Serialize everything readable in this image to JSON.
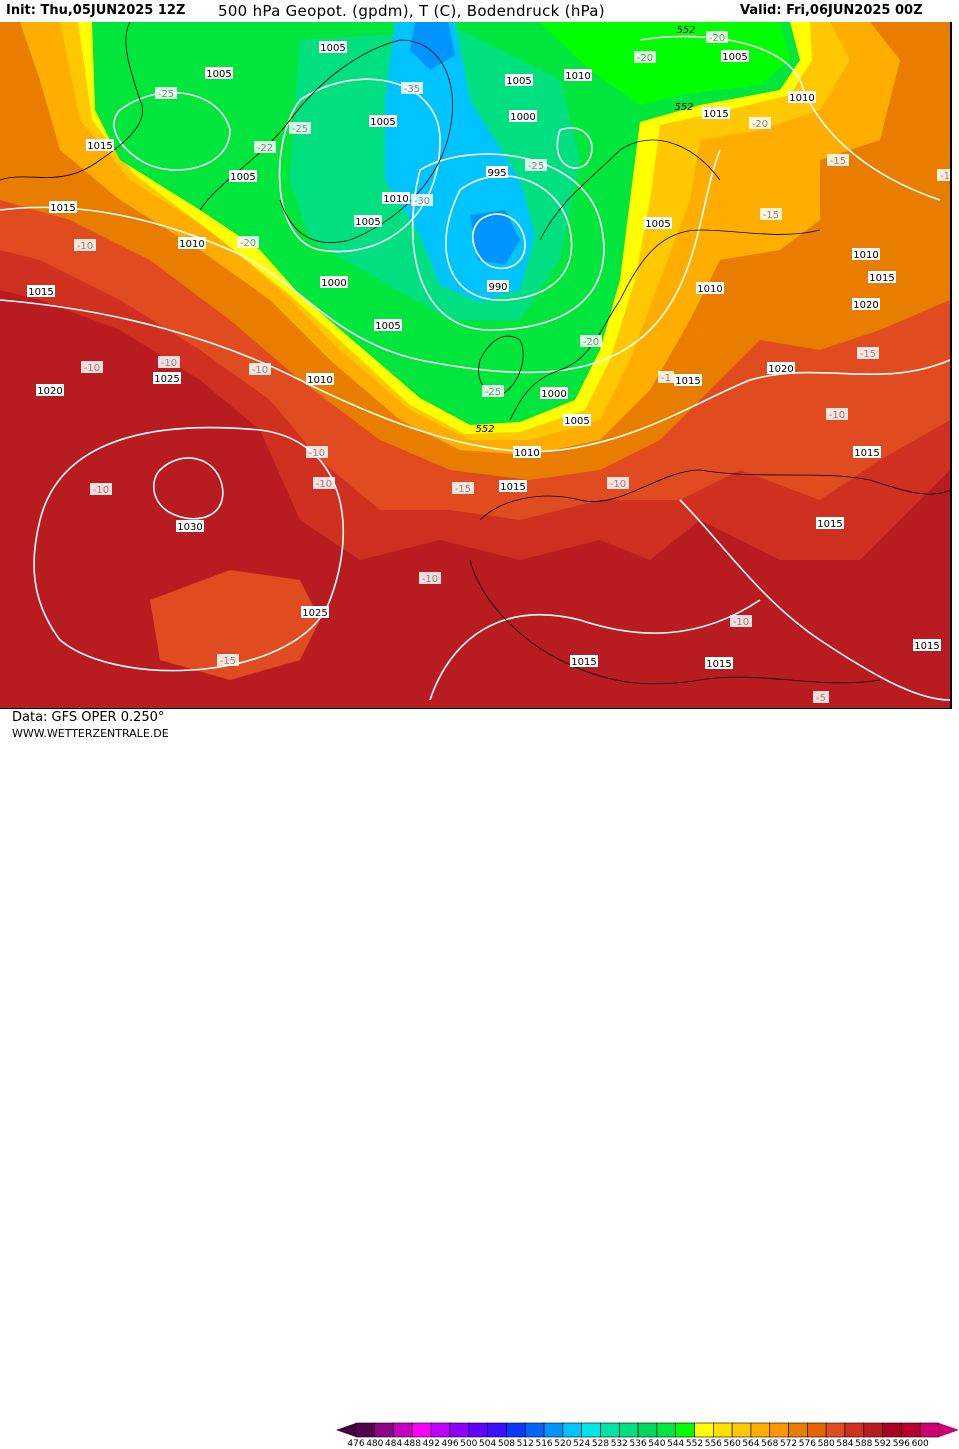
{
  "header": {
    "init": "Init: Thu,05JUN2025 12Z",
    "title": "500 hPa Geopot. (gpdm), T (C), Bodendruck (hPa)",
    "valid": "Valid: Fri,06JUN2025 00Z"
  },
  "footer": {
    "data_source": "Data: GFS OPER 0.250°",
    "website": "WWW.WETTERZENTRALE.DE"
  },
  "legend": {
    "labels": [
      "476",
      "480",
      "484",
      "488",
      "492",
      "496",
      "500",
      "504",
      "508",
      "512",
      "516",
      "520",
      "524",
      "528",
      "532",
      "536",
      "540",
      "544",
      "552",
      "556",
      "560",
      "564",
      "568",
      "572",
      "576",
      "580",
      "584",
      "588",
      "592",
      "596",
      "600"
    ],
    "colors": [
      "#560050",
      "#8e0088",
      "#c400bf",
      "#ff00ff",
      "#c000ff",
      "#9000ff",
      "#6400ff",
      "#3a10ff",
      "#0a38ff",
      "#0064ff",
      "#0094ff",
      "#00c4ff",
      "#00e6ea",
      "#00e2a8",
      "#00e080",
      "#00d860",
      "#00e63c",
      "#00ff00",
      "#ffff00",
      "#ffe000",
      "#ffc800",
      "#ffae00",
      "#ff9600",
      "#e87d00",
      "#e86400",
      "#e04c20",
      "#d03020",
      "#b81c20",
      "#a80020",
      "#b80030",
      "#cc0070"
    ]
  },
  "map": {
    "colors": {
      "ridge_red": "#b81c20",
      "deep_red": "#a80020",
      "red": "#d03020",
      "orange_red": "#e04c20",
      "orange": "#e87d00",
      "light_orange": "#ffae00",
      "amber": "#ffc800",
      "yellow": "#ffff00",
      "green": "#00e63c",
      "bright_green": "#00ff00",
      "teal": "#00e080",
      "cyan": "#00c4ff",
      "light_blue": "#0094ff"
    },
    "labels": [
      "1005",
      "1005",
      "1005",
      "1010",
      "552",
      "-20",
      "1005",
      "-20",
      "1010",
      "552",
      "1015",
      "-20",
      "1000",
      "1005",
      "-35",
      "-25",
      "-25",
      "-22",
      "1015",
      "995",
      "-25",
      "1005",
      "-15",
      "-1",
      "1010",
      "-30",
      "1015",
      "1005",
      "1005",
      "-15",
      "1010",
      "-20",
      "-10",
      "1010",
      "1015",
      "1015",
      "990",
      "1000",
      "1010",
      "1020",
      "1005",
      "-20",
      "-15",
      "-10",
      "-10",
      "-10",
      "1025",
      "1010",
      "1020",
      "-1",
      "1015",
      "1020",
      "-25",
      "1000",
      "1005",
      "552",
      "-10",
      "1010",
      "-10",
      "1015",
      "-10",
      "-15",
      "1015",
      "-10",
      "-10",
      "1030",
      "1015",
      "-10",
      "1025",
      "-10",
      "1015",
      "-15",
      "1015",
      "1015",
      "-5"
    ]
  }
}
